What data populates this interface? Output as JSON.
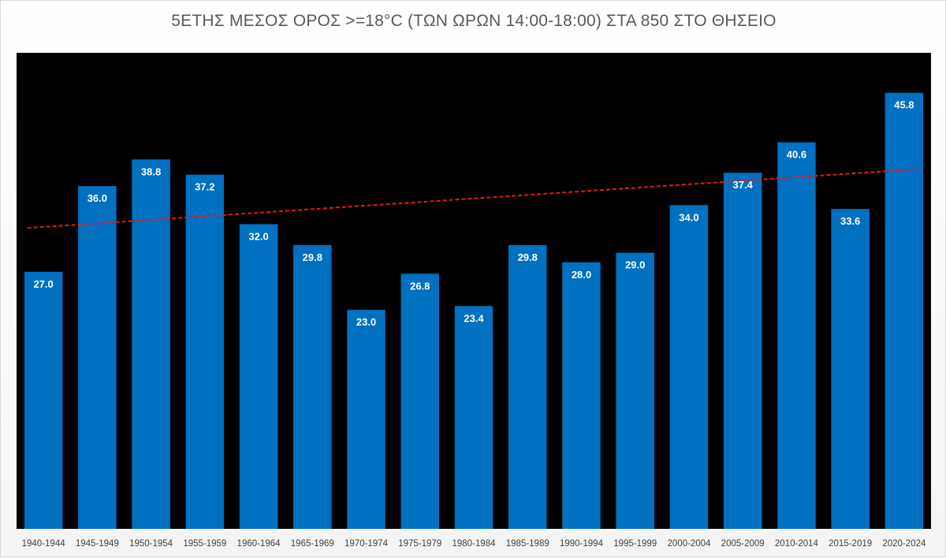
{
  "chart_data": {
    "type": "bar",
    "title": "5ΕΤΗΣ ΜΕΣΟΣ ΟΡΟΣ >=18°C (ΤΩΝ ΩΡΩΝ 14:00-18:00) ΣΤΑ 850 ΣΤΟ ΘΗΣΕΙΟ",
    "categories": [
      "1940-1944",
      "1945-1949",
      "1950-1954",
      "1955-1959",
      "1960-1964",
      "1965-1969",
      "1970-1974",
      "1975-1979",
      "1980-1984",
      "1985-1989",
      "1990-1994",
      "1995-1999",
      "2000-2004",
      "2005-2009",
      "2010-2014",
      "2015-2019",
      "2020-2024"
    ],
    "values": [
      27.0,
      36.0,
      38.8,
      37.2,
      32.0,
      29.8,
      23.0,
      26.8,
      23.4,
      29.8,
      28.0,
      29.0,
      34.0,
      37.4,
      40.6,
      33.6,
      45.8
    ],
    "data_labels": [
      "27.0",
      "36.0",
      "38.8",
      "37.2",
      "32.0",
      "29.8",
      "23.0",
      "26.8",
      "23.4",
      "29.8",
      "28.0",
      "29.0",
      "34.0",
      "37.4",
      "40.6",
      "33.6",
      "45.8"
    ],
    "trendline": {
      "type": "linear",
      "start_value": 31.6,
      "end_value": 37.8,
      "style": "dashed"
    },
    "ylim": [
      0,
      50
    ],
    "grid": false,
    "legend": "none",
    "xlabel": "",
    "ylabel": "",
    "colors": {
      "bar": "#0070c0",
      "plot_background": "#000000",
      "trendline": "#e31a1c",
      "bar_label": "#ffffff",
      "title": "#595959",
      "tick_label": "#404040"
    }
  }
}
